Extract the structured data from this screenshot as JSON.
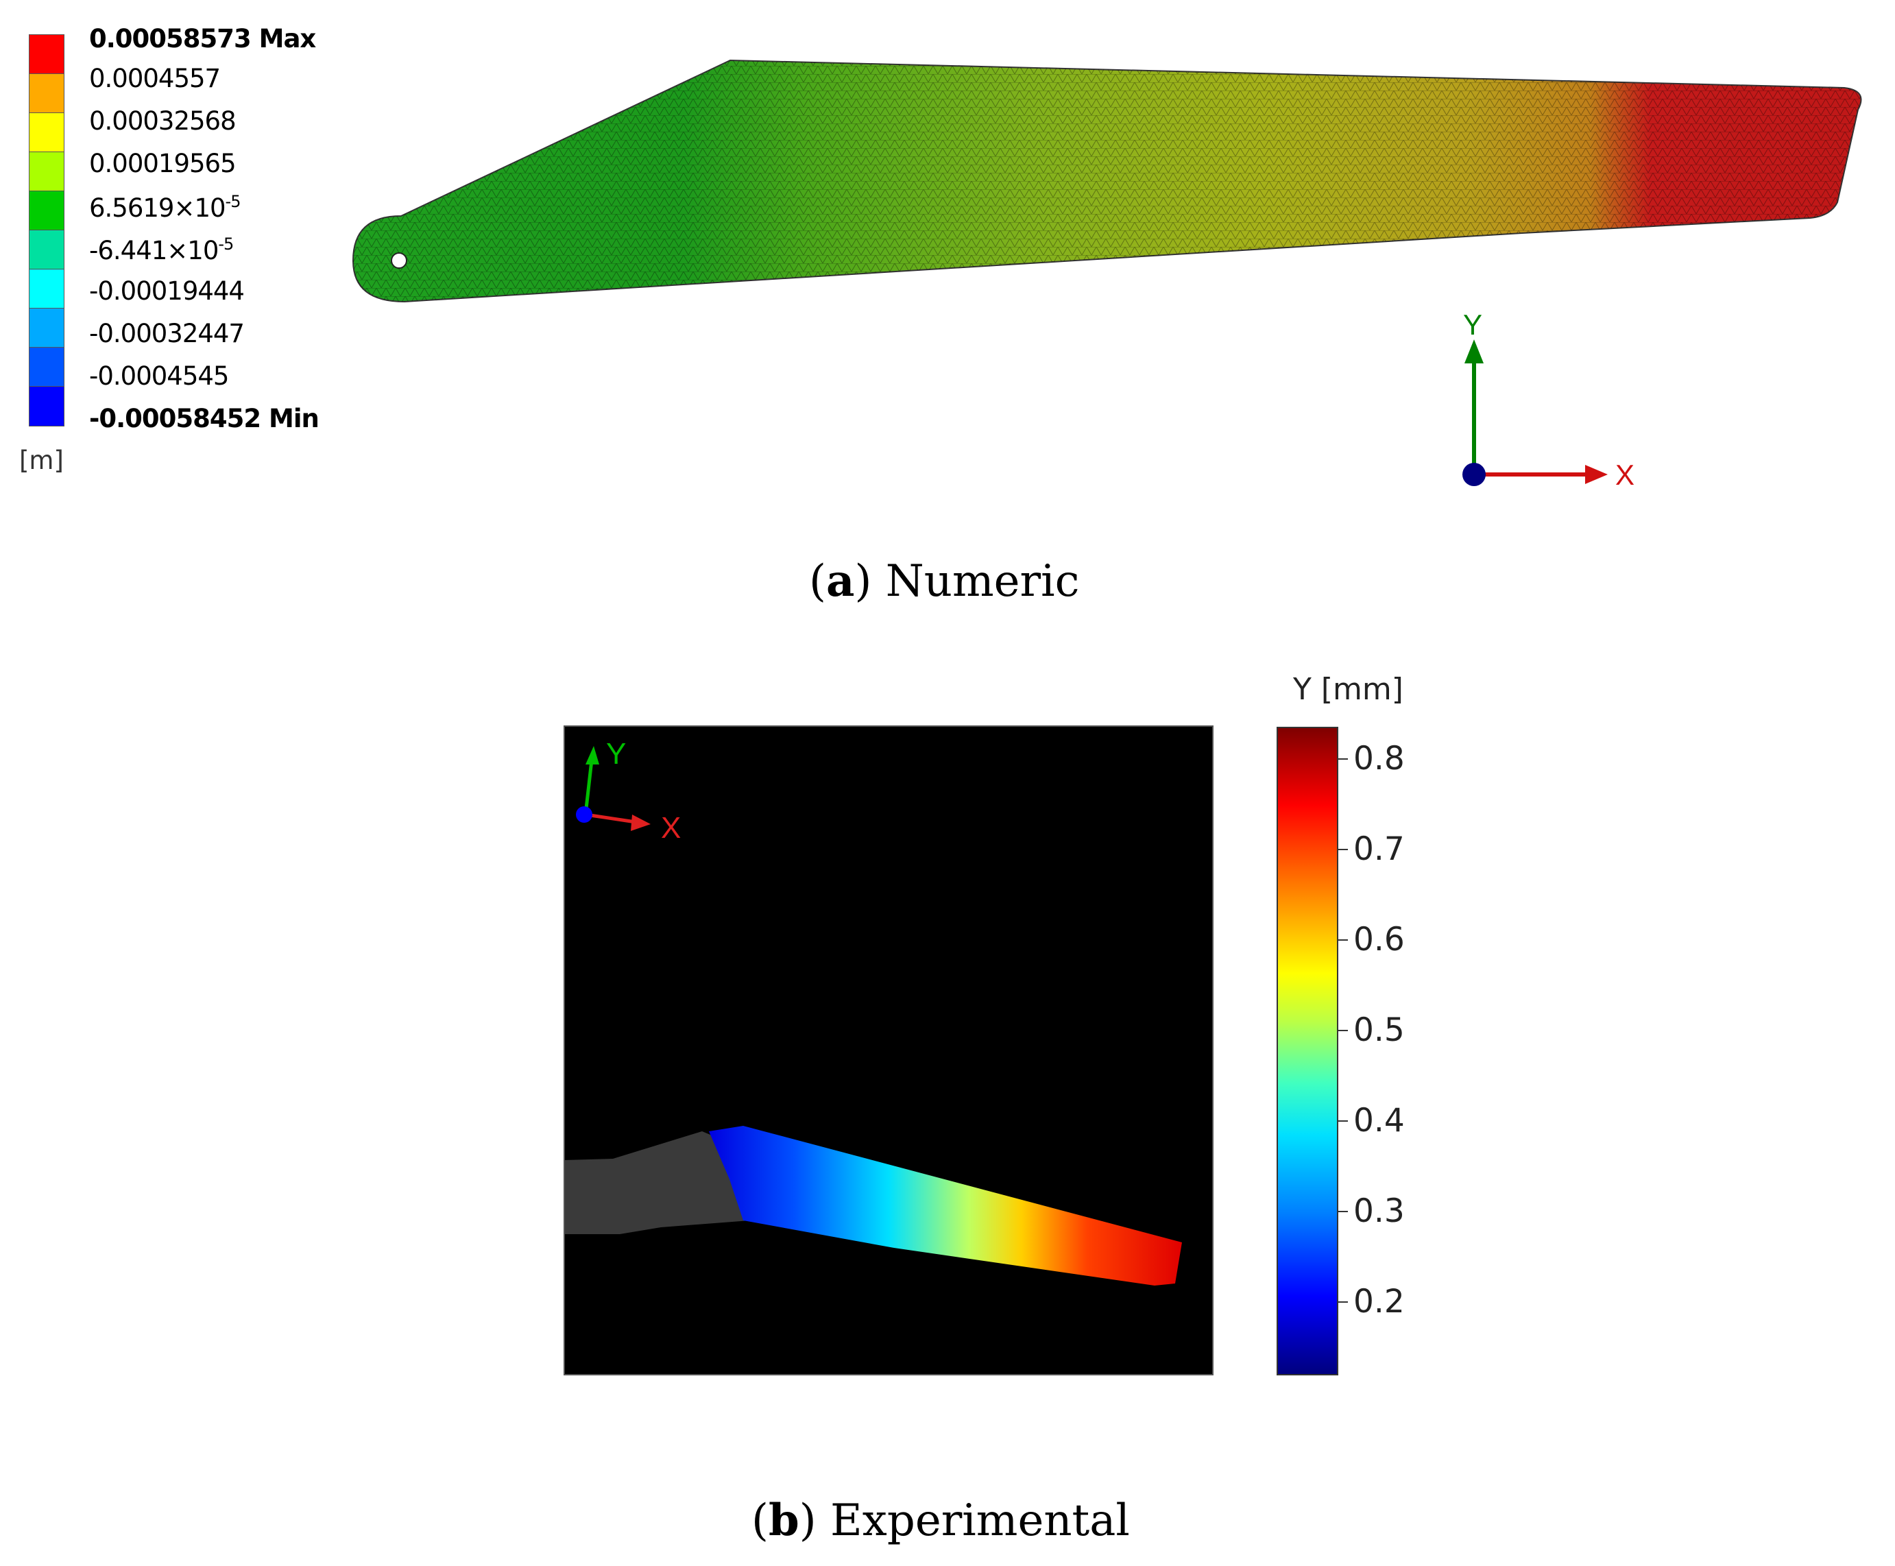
{
  "panel_a": {
    "legend": {
      "labels": [
        {
          "text": "0.00058573 Max",
          "bold": true
        },
        {
          "text": "0.0004557"
        },
        {
          "text": "0.00032568"
        },
        {
          "text": "0.00019565"
        },
        {
          "text": "6.5619×10",
          "exp": "-5"
        },
        {
          "text": "-6.441×10",
          "exp": "-5"
        },
        {
          "text": "-0.00019444"
        },
        {
          "text": "-0.00032447"
        },
        {
          "text": "-0.0004545"
        },
        {
          "text": "-0.00058452 Min",
          "bold": true
        }
      ],
      "colors": [
        "#ff0000",
        "#ffaa00",
        "#ffff00",
        "#aaff00",
        "#00cc00",
        "#00e0a0",
        "#00ffff",
        "#00aaff",
        "#0055ff",
        "#0000ff"
      ],
      "unit": "[m]"
    },
    "triad": {
      "y_label": "Y",
      "x_label": "X"
    },
    "caption_letter": "a",
    "caption_text": " Numeric"
  },
  "panel_b": {
    "triad": {
      "y_label": "Y",
      "x_label": "X"
    },
    "colorbar": {
      "title": "Y  [mm]",
      "ticks": [
        "0.8",
        "0.7",
        "0.6",
        "0.5",
        "0.4",
        "0.3",
        "0.2"
      ],
      "range": [
        0.12,
        0.84
      ]
    },
    "caption_letter": "b",
    "caption_text": " Experimental"
  },
  "colors": {
    "axis_y": "#008000",
    "axis_x": "#e02020",
    "origin": "#000080"
  }
}
